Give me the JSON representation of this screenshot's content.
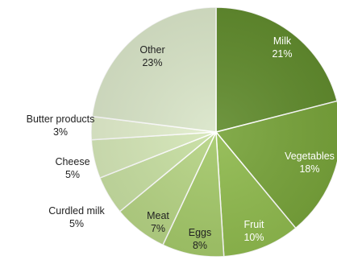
{
  "chart_data": {
    "type": "pie",
    "title": "",
    "start_angle_deg": 0,
    "direction": "clockwise",
    "slices": [
      {
        "name": "Milk",
        "value": 21,
        "label": "21%",
        "color": "#5f8a2b"
      },
      {
        "name": "Vegetables",
        "value": 18,
        "label": "18%",
        "color": "#76a238"
      },
      {
        "name": "Fruit",
        "value": 10,
        "label": "10%",
        "color": "#8eb94c"
      },
      {
        "name": "Eggs",
        "value": 8,
        "label": "8%",
        "color": "#a3c868"
      },
      {
        "name": "Meat",
        "value": 7,
        "label": "7%",
        "color": "#b5d383"
      },
      {
        "name": "Curdled milk",
        "value": 5,
        "label": "5%",
        "color": "#c6dea0"
      },
      {
        "name": "Cheese",
        "value": 5,
        "label": "5%",
        "color": "#d4e6b6"
      },
      {
        "name": "Butter products",
        "value": 3,
        "label": "3%",
        "color": "#e1edcb"
      },
      {
        "name": "Other",
        "value": 23,
        "label": "23%",
        "color": "#d9e5c8"
      }
    ]
  }
}
